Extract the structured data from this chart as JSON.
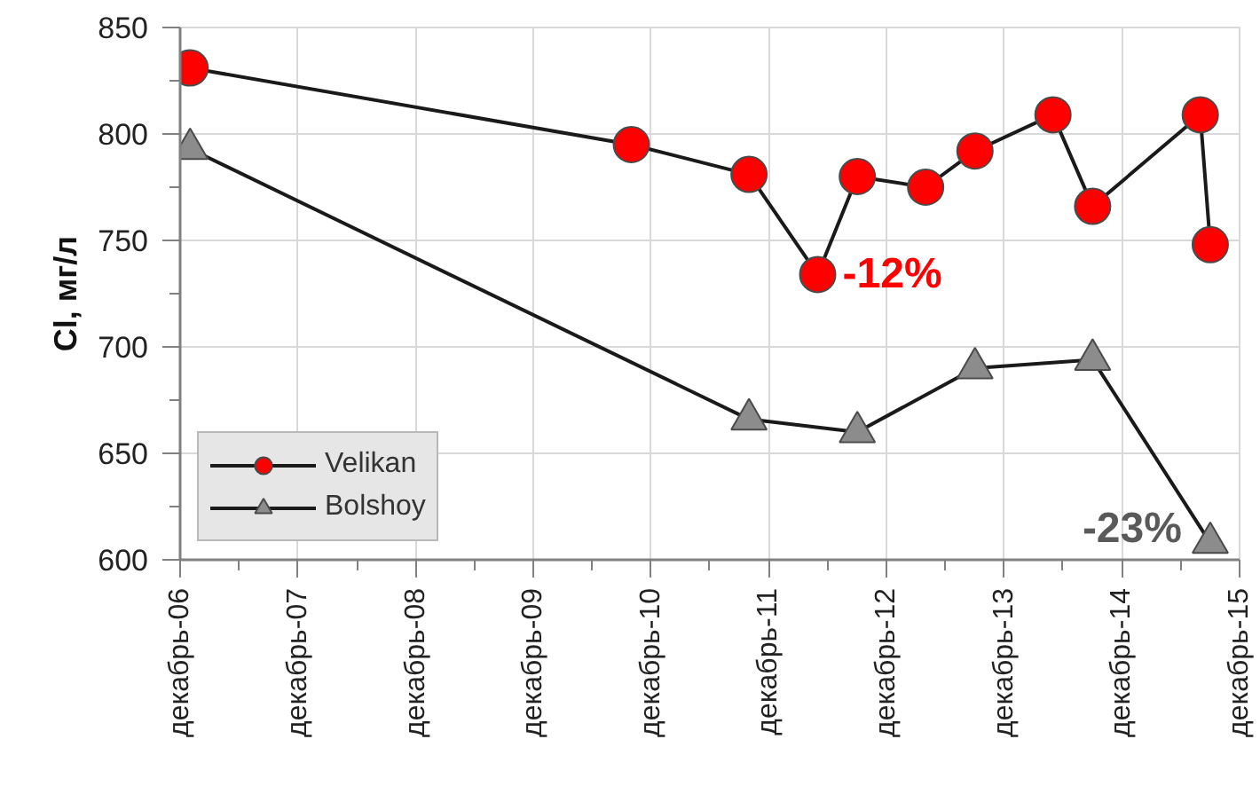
{
  "chart_data": {
    "type": "line",
    "ylabel": "Cl, мг/л",
    "xlim": [
      "2006-12",
      "2015-12"
    ],
    "ylim": [
      600,
      850
    ],
    "xticks": [
      {
        "value": "2006-12",
        "label": "декабрь-06"
      },
      {
        "value": "2007-06",
        "label": null
      },
      {
        "value": "2007-12",
        "label": "декабрь-07"
      },
      {
        "value": "2008-06",
        "label": null
      },
      {
        "value": "2008-12",
        "label": "декабрь-08"
      },
      {
        "value": "2009-06",
        "label": null
      },
      {
        "value": "2009-12",
        "label": "декабрь-09"
      },
      {
        "value": "2010-06",
        "label": null
      },
      {
        "value": "2010-12",
        "label": "декабрь-10"
      },
      {
        "value": "2011-06",
        "label": null
      },
      {
        "value": "2011-12",
        "label": "декабрь-11"
      },
      {
        "value": "2012-06",
        "label": null
      },
      {
        "value": "2012-12",
        "label": "декабрь-12"
      },
      {
        "value": "2013-06",
        "label": null
      },
      {
        "value": "2013-12",
        "label": "декабрь-13"
      },
      {
        "value": "2014-06",
        "label": null
      },
      {
        "value": "2014-12",
        "label": "декабрь-14"
      },
      {
        "value": "2015-06",
        "label": null
      },
      {
        "value": "2015-12",
        "label": "декабрь-15"
      }
    ],
    "yticks": [
      600,
      {
        "value": 625,
        "label": null
      },
      650,
      {
        "value": 675,
        "label": null
      },
      700,
      {
        "value": 725,
        "label": null
      },
      750,
      {
        "value": 775,
        "label": null
      },
      800,
      {
        "value": 825,
        "label": null
      },
      850
    ],
    "grid": true,
    "legend": "bottom left",
    "line_style": "solid",
    "series": [
      {
        "name": "Velikan",
        "color": "#ff0000",
        "marker": "circle",
        "x": [
          "2007-01",
          "2010-10",
          "2011-10",
          "2012-05",
          "2012-09",
          "2013-04",
          "2013-09",
          "2014-05",
          "2014-09",
          "2015-08",
          "2015-09"
        ],
        "values": [
          831,
          795,
          781,
          734,
          780,
          775,
          792,
          809,
          766,
          809,
          748
        ]
      },
      {
        "name": "Bolshoy",
        "color": "#8c8c8c",
        "marker": "triangle",
        "x": [
          "2007-01",
          "2011-10",
          "2012-09",
          "2013-09",
          "2014-09",
          "2015-09"
        ],
        "values": [
          793,
          666,
          660,
          690,
          694,
          608
        ]
      }
    ],
    "annotations": [
      {
        "text": "-12%",
        "x": "2012-05",
        "y": 734
      },
      {
        "text": "-23%",
        "x": "2015-09",
        "y": 608
      }
    ]
  }
}
